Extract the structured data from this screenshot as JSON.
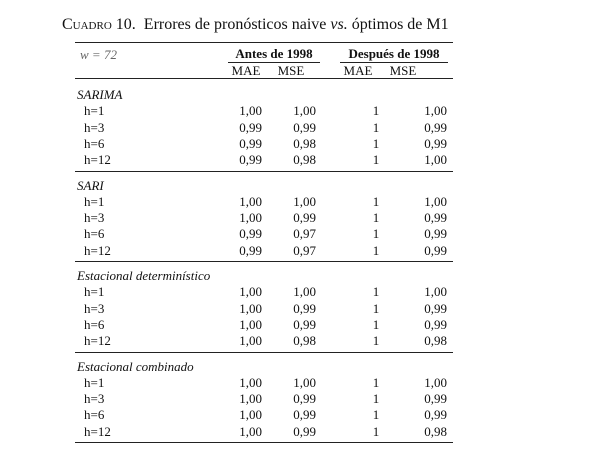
{
  "title": {
    "label": "Cuadro 10.",
    "text": "Errores de pronósticos naive",
    "emphasis": "vs.",
    "rest": "óptimos de M1"
  },
  "table": {
    "corner": "w = 72",
    "column_groups": [
      "Antes de 1998",
      "Después de 1998"
    ],
    "columns": [
      "MAE",
      "MSE",
      "MAE",
      "MSE"
    ],
    "groups": [
      {
        "name": "SARIMA",
        "rows": [
          {
            "label": "h=1",
            "values": [
              "1,00",
              "1,00",
              "1",
              "1,00"
            ]
          },
          {
            "label": "h=3",
            "values": [
              "0,99",
              "0,99",
              "1",
              "0,99"
            ]
          },
          {
            "label": "h=6",
            "values": [
              "0,99",
              "0,98",
              "1",
              "0,99"
            ]
          },
          {
            "label": "h=12",
            "values": [
              "0,99",
              "0,98",
              "1",
              "1,00"
            ]
          }
        ]
      },
      {
        "name": "SARI",
        "rows": [
          {
            "label": "h=1",
            "values": [
              "1,00",
              "1,00",
              "1",
              "1,00"
            ]
          },
          {
            "label": "h=3",
            "values": [
              "1,00",
              "0,99",
              "1",
              "0,99"
            ]
          },
          {
            "label": "h=6",
            "values": [
              "0,99",
              "0,97",
              "1",
              "0,99"
            ]
          },
          {
            "label": "h=12",
            "values": [
              "0,99",
              "0,97",
              "1",
              "0,99"
            ]
          }
        ]
      },
      {
        "name": "Estacional determinístico",
        "rows": [
          {
            "label": "h=1",
            "values": [
              "1,00",
              "1,00",
              "1",
              "1,00"
            ]
          },
          {
            "label": "h=3",
            "values": [
              "1,00",
              "0,99",
              "1",
              "0,99"
            ]
          },
          {
            "label": "h=6",
            "values": [
              "1,00",
              "0,99",
              "1",
              "0,99"
            ]
          },
          {
            "label": "h=12",
            "values": [
              "1,00",
              "0,98",
              "1",
              "0,98"
            ]
          }
        ]
      },
      {
        "name": "Estacional combinado",
        "rows": [
          {
            "label": "h=1",
            "values": [
              "1,00",
              "1,00",
              "1",
              "1,00"
            ]
          },
          {
            "label": "h=3",
            "values": [
              "1,00",
              "0,99",
              "1",
              "0,99"
            ]
          },
          {
            "label": "h=6",
            "values": [
              "1,00",
              "0,99",
              "1",
              "0,99"
            ]
          },
          {
            "label": "h=12",
            "values": [
              "1,00",
              "0,99",
              "1",
              "0,98"
            ]
          }
        ]
      }
    ]
  }
}
